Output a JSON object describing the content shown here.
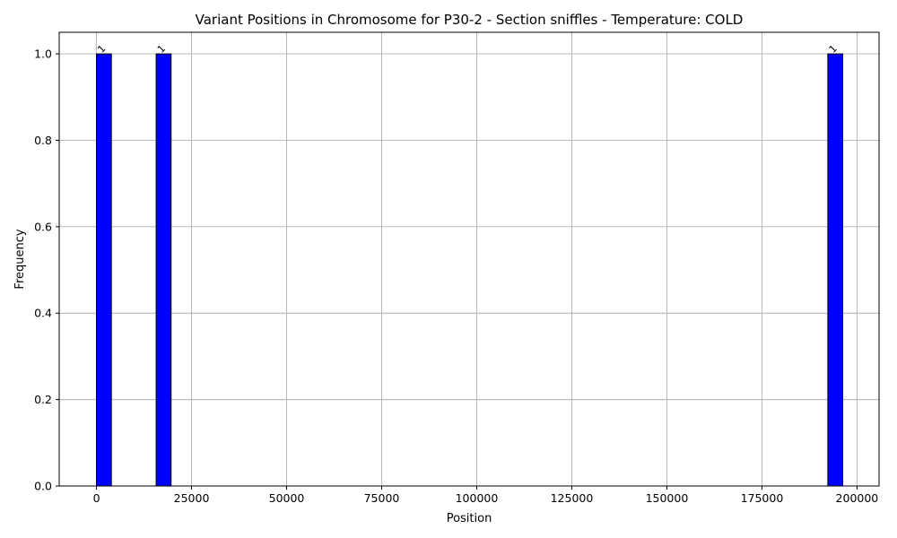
{
  "chart_data": {
    "type": "bar",
    "title": "Variant Positions in Chromosome for P30-2 - Section sniffles - Temperature: COLD",
    "xlabel": "Position",
    "ylabel": "Frequency",
    "xlim": [
      -9800,
      205800
    ],
    "ylim": [
      0,
      1.05
    ],
    "xticks": [
      0,
      25000,
      50000,
      75000,
      100000,
      125000,
      150000,
      175000,
      200000
    ],
    "xtick_labels": [
      "0",
      "25000",
      "50000",
      "75000",
      "100000",
      "125000",
      "150000",
      "175000",
      "200000"
    ],
    "yticks": [
      0.0,
      0.2,
      0.4,
      0.6,
      0.8,
      1.0
    ],
    "ytick_labels": [
      "0.0",
      "0.2",
      "0.4",
      "0.6",
      "0.8",
      "1.0"
    ],
    "grid": true,
    "bar_color": "#0000ff",
    "bar_edge_color": "#000000",
    "bins": [
      {
        "start": 0,
        "end": 3925,
        "value": 1,
        "label": "1"
      },
      {
        "start": 15700,
        "end": 19625,
        "value": 1,
        "label": "1"
      },
      {
        "start": 192325,
        "end": 196250,
        "value": 1,
        "label": "1"
      }
    ]
  }
}
